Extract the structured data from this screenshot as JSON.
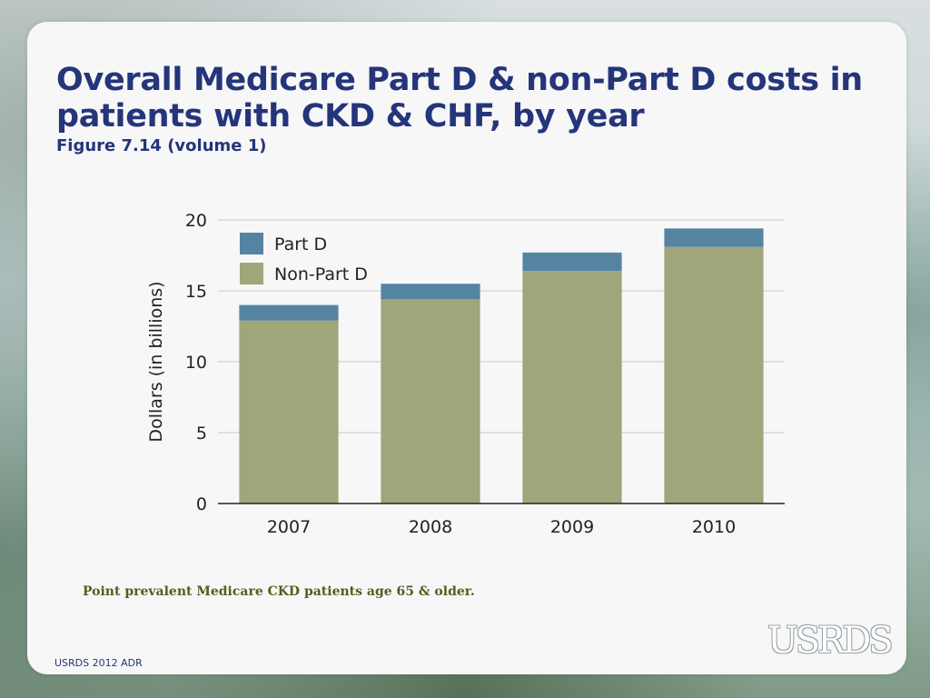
{
  "slide": {
    "title": "Overall Medicare Part D & non-Part D costs in patients with CKD &  CHF, by year",
    "subtitle": "Figure 7.14 (volume 1)",
    "note": "Point prevalent Medicare CKD patients age 65 & older.",
    "footer": "USRDS 2012 ADR",
    "logo_text": "USRDS"
  },
  "colors": {
    "part_d": "#5584a3",
    "non_part_d": "#a0a57a",
    "title": "#25357a"
  },
  "chart_data": {
    "type": "bar",
    "stacked": true,
    "title": "",
    "xlabel": "",
    "ylabel": "Dollars (in billions)",
    "ylim": [
      0,
      20
    ],
    "yticks": [
      0,
      5,
      10,
      15,
      20
    ],
    "grid": true,
    "legend_position": "top-left",
    "categories": [
      "2007",
      "2008",
      "2009",
      "2010"
    ],
    "series": [
      {
        "name": "Non-Part D",
        "values": [
          12.9,
          14.4,
          16.4,
          18.1
        ]
      },
      {
        "name": "Part D",
        "values": [
          1.1,
          1.1,
          1.3,
          1.3
        ]
      }
    ],
    "legend": [
      "Part D",
      "Non-Part D"
    ]
  }
}
